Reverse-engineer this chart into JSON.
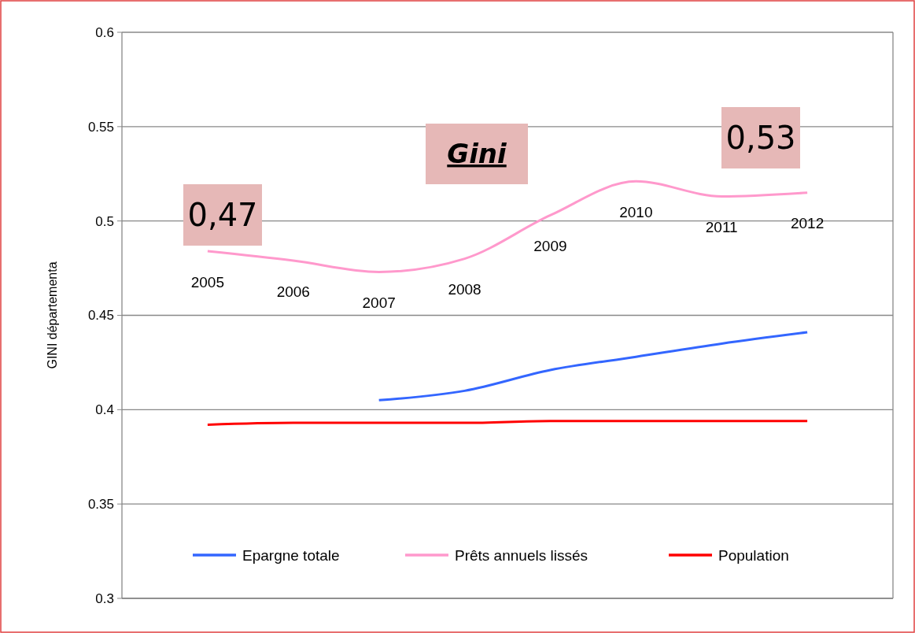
{
  "chart_data": {
    "type": "line",
    "title": "Gini",
    "ylabel": "GINI départementa",
    "categories": [
      null,
      null,
      null,
      null,
      null,
      null,
      null,
      null
    ],
    "ylim": [
      0.3,
      0.6
    ],
    "yticks": [
      0.3,
      0.35,
      0.4,
      0.45,
      0.5,
      0.55,
      0.6
    ],
    "grid": "y",
    "legend": "bottom",
    "marker": "none",
    "line_style": "solid",
    "series": [
      {
        "name": "Epargne totale",
        "color": "#3366ff",
        "values": [
          null,
          null,
          0.405,
          0.41,
          0.421,
          0.428,
          0.435,
          0.441
        ]
      },
      {
        "name": "Prêts annuels lissés",
        "color": "#ff99cc",
        "values": [
          0.484,
          0.479,
          0.473,
          0.48,
          0.503,
          0.521,
          0.513,
          0.515
        ]
      },
      {
        "name": "Population",
        "color": "#ff0000",
        "values": [
          0.392,
          0.393,
          0.393,
          0.393,
          0.394,
          0.394,
          0.394,
          0.394
        ]
      }
    ],
    "annotations": [
      "0,47",
      "0,53",
      "2005",
      "2006",
      "2007",
      "2008",
      "2009",
      "2010",
      "2011",
      "2012"
    ]
  }
}
